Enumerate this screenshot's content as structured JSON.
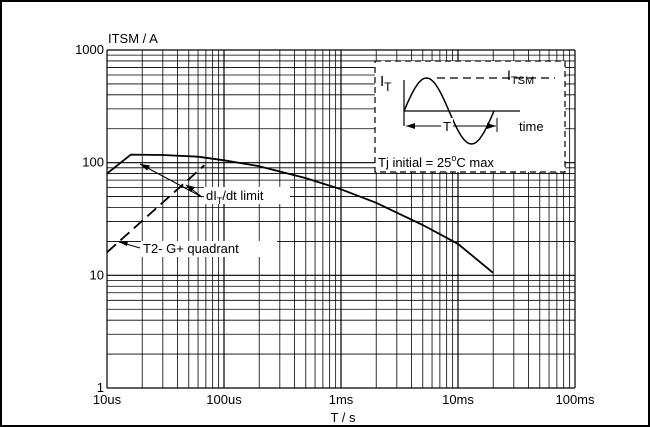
{
  "chart_data": {
    "type": "line",
    "scale": "log-log",
    "ylabel": "ITSM / A",
    "xlabel": "T / s",
    "x_ticks": [
      "10us",
      "100us",
      "1ms",
      "10ms",
      "100ms"
    ],
    "x_tick_values": [
      1e-05,
      0.0001,
      0.001,
      0.01,
      0.1
    ],
    "y_ticks": [
      "1",
      "10",
      "100",
      "1000"
    ],
    "y_tick_values": [
      1,
      10,
      100,
      1000
    ],
    "xlim": [
      1e-05,
      0.1
    ],
    "ylim": [
      1,
      1000
    ],
    "grid": true,
    "series": [
      {
        "style": "solid",
        "points": [
          [
            1e-05,
            80
          ],
          [
            1.6e-05,
            118
          ],
          [
            3e-05,
            117
          ],
          [
            6e-05,
            113
          ],
          [
            0.0001,
            105
          ],
          [
            0.0002,
            93
          ],
          [
            0.0005,
            73
          ],
          [
            0.001,
            58
          ],
          [
            0.002,
            44
          ],
          [
            0.005,
            28
          ],
          [
            0.01,
            19
          ],
          [
            0.02,
            10.5
          ]
        ]
      },
      {
        "style": "dashed",
        "points": [
          [
            1e-05,
            16
          ],
          [
            6.8e-05,
            95
          ]
        ]
      }
    ],
    "annotations": [
      {
        "id": "dlimit",
        "base": "dI",
        "sub": "T",
        "rest": "/dt limit"
      },
      {
        "id": "quadrant",
        "text": "T2- G+ quadrant"
      }
    ],
    "inset": {
      "it_base": "I",
      "it_sub": "T",
      "itsm_base": "I",
      "itsm_sub": "TSM",
      "period_label": "T",
      "time_label": "time",
      "tj_prefix": "Tj initial = 25",
      "tj_sup": "o",
      "tj_suffix": "C max"
    }
  }
}
